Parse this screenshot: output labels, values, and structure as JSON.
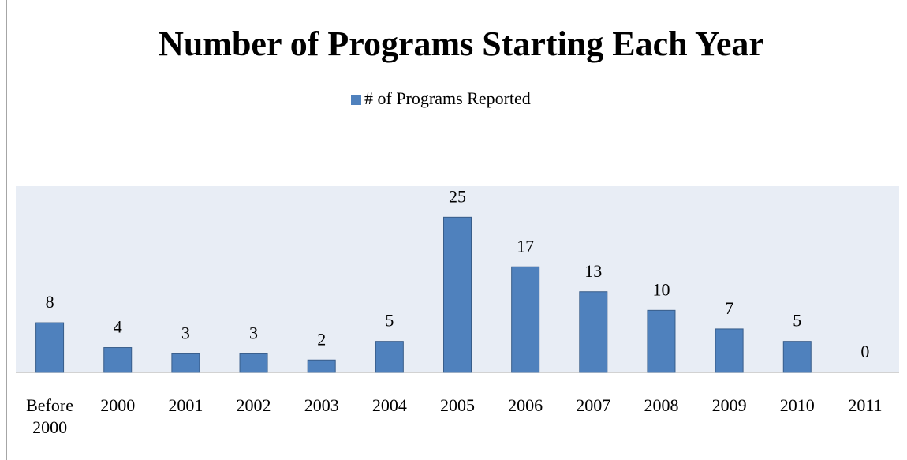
{
  "chart_data": {
    "type": "bar",
    "title": "Number of Programs Starting Each Year",
    "categories": [
      "Before 2000",
      "2000",
      "2001",
      "2002",
      "2003",
      "2004",
      "2005",
      "2006",
      "2007",
      "2008",
      "2009",
      "2010",
      "2011"
    ],
    "series": [
      {
        "name": "# of Programs Reported",
        "color": "#4f81bd",
        "values": [
          8,
          4,
          3,
          3,
          2,
          5,
          25,
          17,
          13,
          10,
          7,
          5,
          0
        ]
      }
    ],
    "ylim": [
      0,
      30
    ],
    "legend": "top"
  }
}
